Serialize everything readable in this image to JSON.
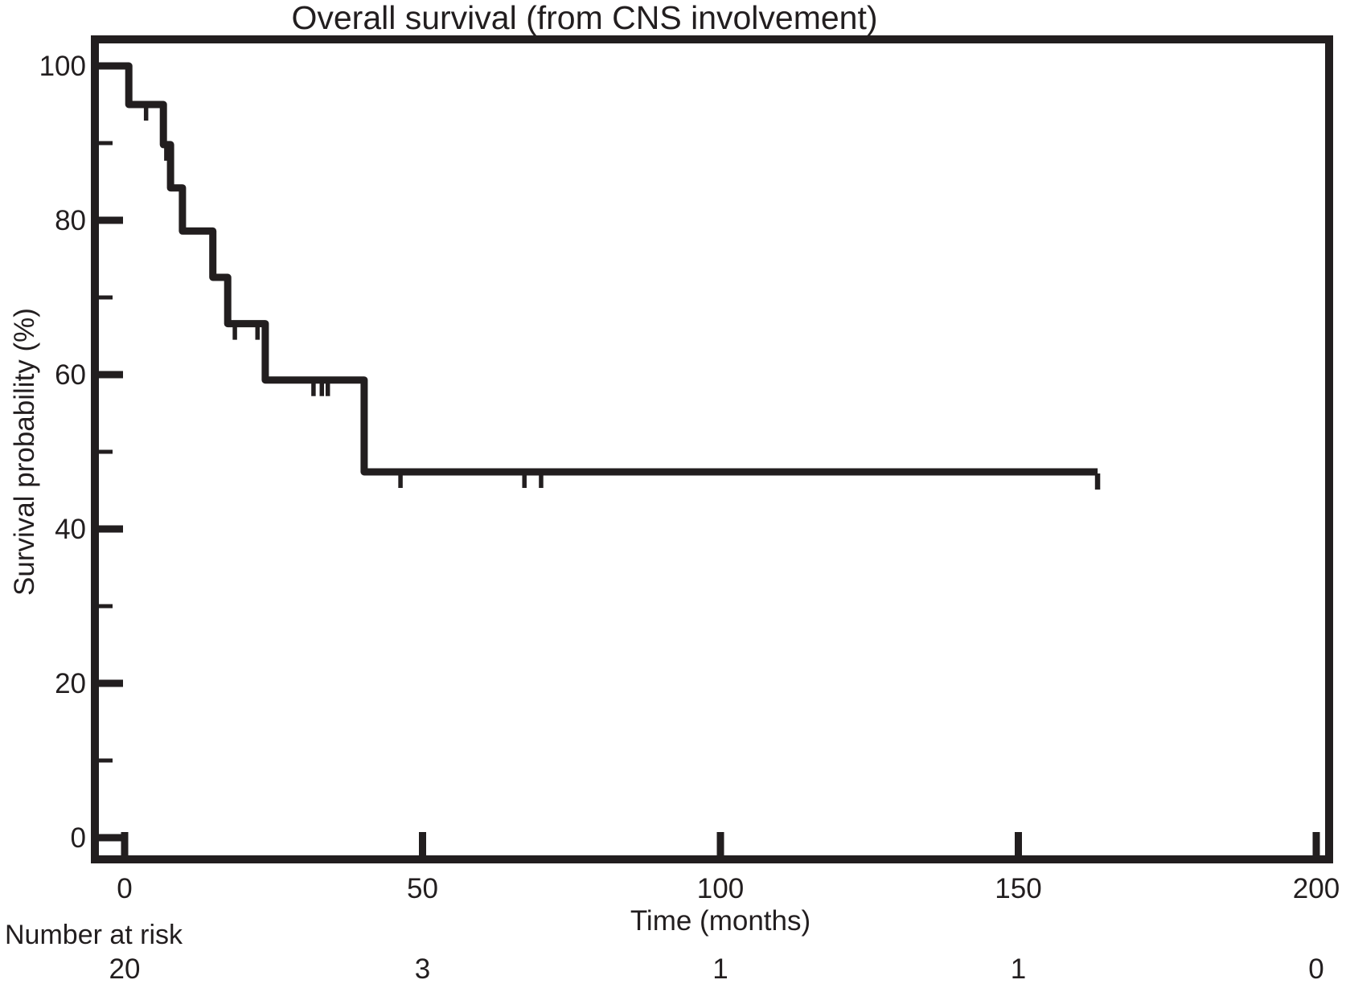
{
  "chart_data": {
    "type": "line",
    "subtype": "kaplan-meier-step-curve",
    "title": "Overall survival (from CNS involvement)",
    "xlabel": "Time (months)",
    "ylabel": "Survival probability (%)",
    "xlim": [
      0,
      200
    ],
    "ylim": [
      0,
      100
    ],
    "grid": false,
    "legend": "none",
    "line_color": "#221e1f",
    "background_color": "#ffffff",
    "x_ticks": [
      0,
      50,
      100,
      150,
      200
    ],
    "y_ticks_major": [
      0,
      20,
      40,
      60,
      80,
      100
    ],
    "y_ticks_minor": [
      10,
      30,
      50,
      70,
      90
    ],
    "steps": [
      {
        "time": 0,
        "survival": 100
      },
      {
        "time": 0.7,
        "survival": 95.0
      },
      {
        "time": 6.5,
        "survival": 89.8
      },
      {
        "time": 7.7,
        "survival": 84.2
      },
      {
        "time": 9.7,
        "survival": 78.6
      },
      {
        "time": 14.8,
        "survival": 72.6
      },
      {
        "time": 17.3,
        "survival": 66.6
      },
      {
        "time": 23.6,
        "survival": 59.3
      },
      {
        "time": 40.2,
        "survival": 47.4
      }
    ],
    "end_time": 163.3,
    "censor_marks": [
      {
        "time": 3.6,
        "survival": 95.0
      },
      {
        "time": 7.0,
        "survival": 89.8
      },
      {
        "time": 18.5,
        "survival": 66.6
      },
      {
        "time": 22.3,
        "survival": 66.6
      },
      {
        "time": 31.7,
        "survival": 59.3
      },
      {
        "time": 33.1,
        "survival": 59.3
      },
      {
        "time": 34.1,
        "survival": 59.3
      },
      {
        "time": 46.3,
        "survival": 47.4
      },
      {
        "time": 67.1,
        "survival": 47.4
      },
      {
        "time": 69.9,
        "survival": 47.4
      },
      {
        "time": 163.3,
        "survival": 47.4
      }
    ],
    "number_at_risk": {
      "label": "Number at risk",
      "times": [
        0,
        50,
        100,
        150,
        200
      ],
      "values": [
        20,
        3,
        1,
        1,
        0
      ]
    }
  }
}
